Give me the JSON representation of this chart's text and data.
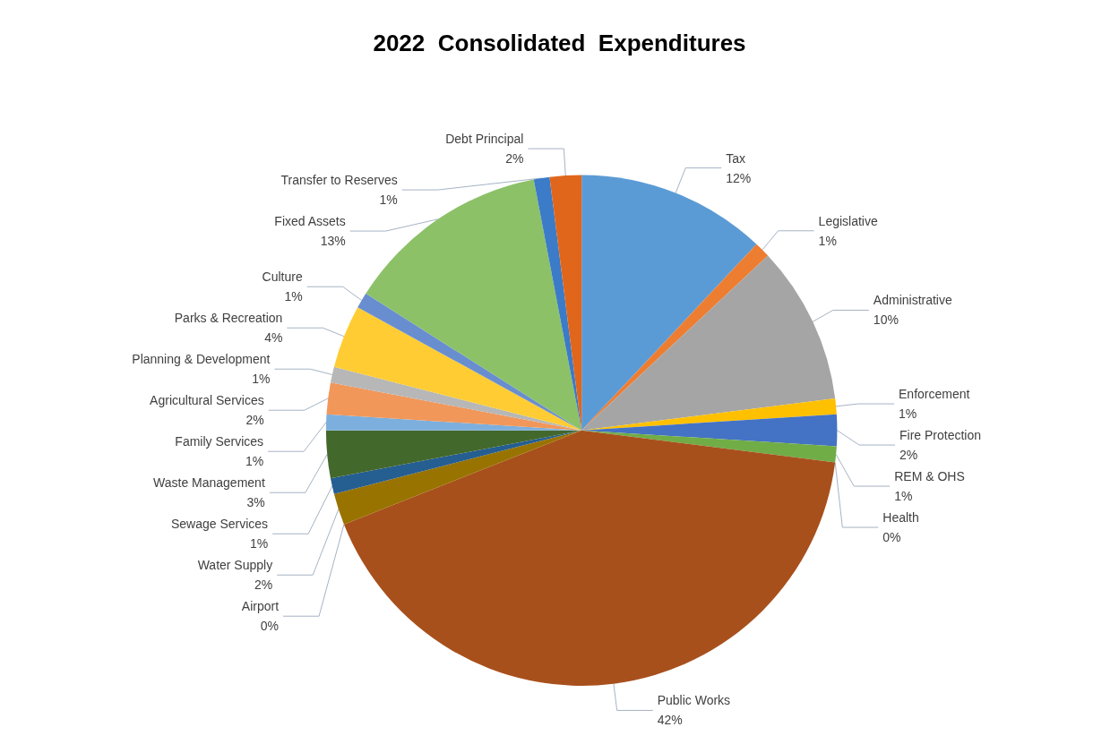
{
  "chart_data": {
    "type": "pie",
    "title": "2022  Consolidated  Expenditures",
    "categories": [
      "Tax",
      "Legislative",
      "Administrative",
      "Enforcement",
      "Fire Protection",
      "REM & OHS",
      "Health",
      "Public Works",
      "Airport",
      "Water Supply",
      "Sewage Services",
      "Waste Management",
      "Family Services",
      "Agricultural Services",
      "Planning & Development",
      "Parks & Recreation",
      "Culture",
      "Fixed Assets",
      "Transfer to Reserves",
      "Debt Principal"
    ],
    "values": [
      12,
      1,
      10,
      1,
      2,
      1,
      0,
      42,
      0,
      2,
      1,
      3,
      1,
      2,
      1,
      4,
      1,
      13,
      1,
      2
    ],
    "value_labels": [
      "12%",
      "1%",
      "10%",
      "1%",
      "2%",
      "1%",
      "0%",
      "42%",
      "0%",
      "2%",
      "1%",
      "3%",
      "1%",
      "2%",
      "1%",
      "4%",
      "1%",
      "13%",
      "1%",
      "2%"
    ],
    "colors": [
      "#5b9bd5",
      "#ed7d31",
      "#a5a5a5",
      "#ffc000",
      "#4472c4",
      "#70ad47",
      "#264478",
      "#a8501c",
      "#636363",
      "#997300",
      "#255e91",
      "#43682b",
      "#7cafdd",
      "#f1975a",
      "#b7b7b7",
      "#ffcd33",
      "#698ed0",
      "#8cc168",
      "#3b7bc8",
      "#e0661c"
    ],
    "legend": false
  }
}
